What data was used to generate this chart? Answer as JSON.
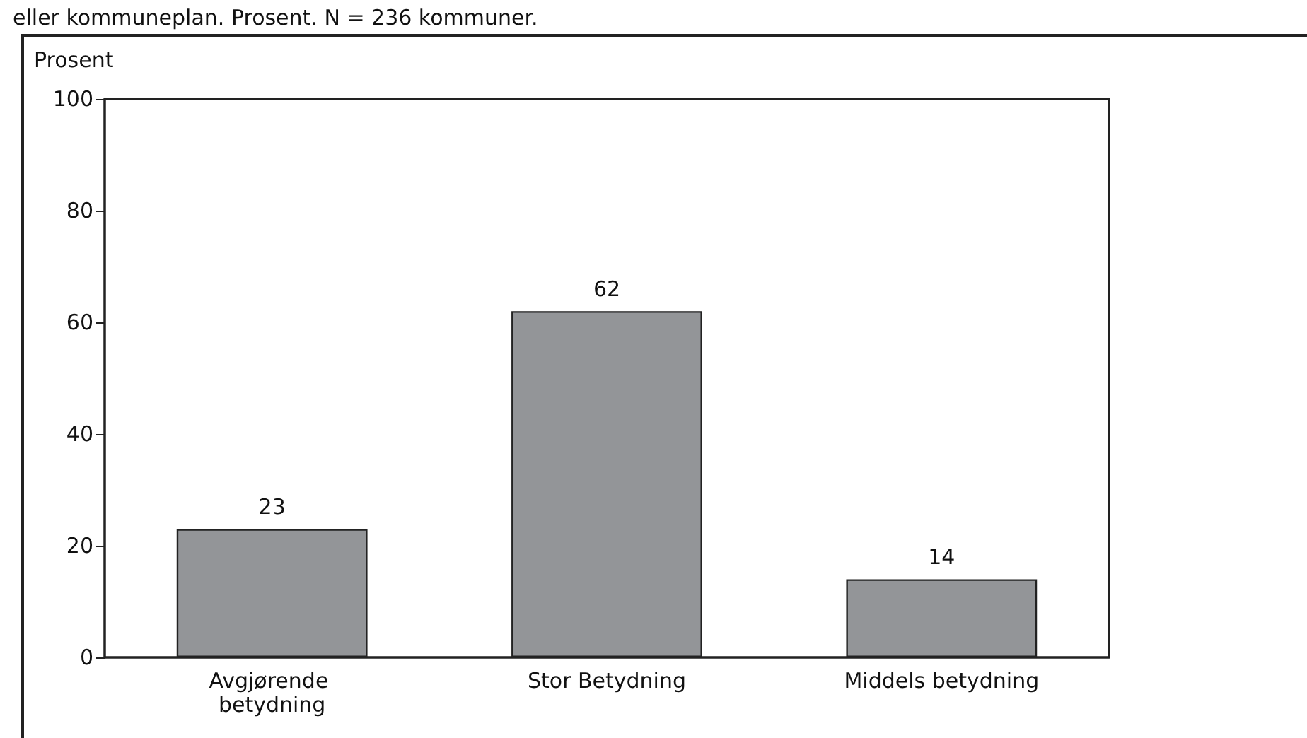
{
  "chart_data": {
    "type": "bar",
    "title": "eller kommuneplan. Prosent. N = 236 kommuner.",
    "ylabel": "Prosent",
    "categories": [
      "Avgjørende betydning",
      "Stor Betydning",
      "Middels betydning"
    ],
    "values": [
      23,
      62,
      14
    ],
    "color": "#939598",
    "data_labels": true,
    "ylim": [
      0,
      100
    ],
    "yticks": [
      0,
      20,
      40,
      60,
      80,
      100
    ],
    "grid": false
  }
}
